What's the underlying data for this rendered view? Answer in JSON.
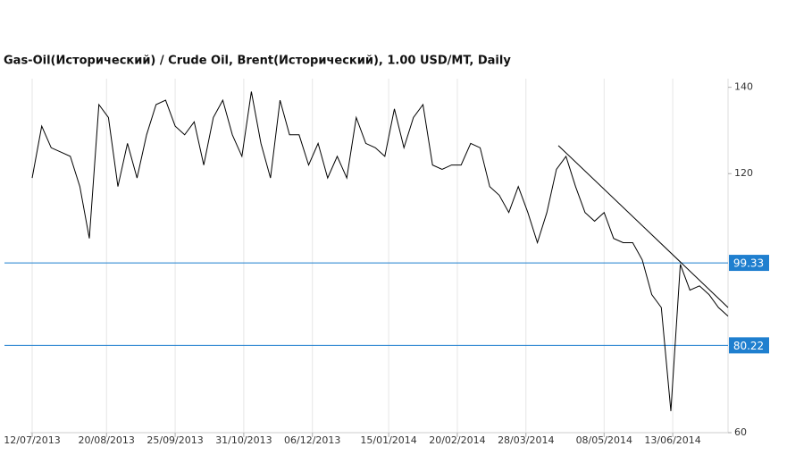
{
  "chart_data": {
    "type": "line",
    "title": "Gas-Oil(Исторический) / Crude Oil, Brent(Исторический), 1.00 USD/MT, Daily",
    "x": [
      "2013-07-12",
      "2013-07-17",
      "2013-07-22",
      "2013-07-27",
      "2013-08-01",
      "2013-08-06",
      "2013-08-11",
      "2013-08-16",
      "2013-08-21",
      "2013-08-26",
      "2013-08-31",
      "2013-09-05",
      "2013-09-10",
      "2013-09-15",
      "2013-09-20",
      "2013-09-25",
      "2013-09-30",
      "2013-10-05",
      "2013-10-10",
      "2013-10-15",
      "2013-10-20",
      "2013-10-25",
      "2013-10-30",
      "2013-11-04",
      "2013-11-09",
      "2013-11-14",
      "2013-11-19",
      "2013-11-24",
      "2013-11-29",
      "2013-12-04",
      "2013-12-09",
      "2013-12-14",
      "2013-12-19",
      "2013-12-24",
      "2013-12-29",
      "2014-01-03",
      "2014-01-08",
      "2014-01-13",
      "2014-01-18",
      "2014-01-23",
      "2014-01-28",
      "2014-02-02",
      "2014-02-07",
      "2014-02-12",
      "2014-02-17",
      "2014-02-22",
      "2014-02-27",
      "2014-03-04",
      "2014-03-09",
      "2014-03-14",
      "2014-03-19",
      "2014-03-24",
      "2014-03-29",
      "2014-04-03",
      "2014-04-08",
      "2014-04-13",
      "2014-04-18",
      "2014-04-23",
      "2014-04-28",
      "2014-05-03",
      "2014-05-08",
      "2014-05-13",
      "2014-05-18",
      "2014-05-23",
      "2014-05-28",
      "2014-06-02",
      "2014-06-07",
      "2014-06-12",
      "2014-06-17",
      "2014-06-22",
      "2014-06-27",
      "2014-07-02",
      "2014-07-07",
      "2014-07-12"
    ],
    "series": [
      {
        "color": "#000000",
        "values": [
          119,
          131,
          126,
          125,
          124,
          117,
          105,
          136,
          133,
          117,
          127,
          119,
          129,
          136,
          137,
          131,
          129,
          132,
          122,
          133,
          137,
          129,
          124,
          139,
          127,
          119,
          137,
          129,
          129,
          122,
          127,
          119,
          124,
          119,
          133,
          127,
          126,
          124,
          135,
          126,
          133,
          136,
          122,
          121,
          122,
          122,
          127,
          126,
          117,
          115,
          111,
          117,
          111,
          104,
          111,
          121,
          124,
          117,
          111,
          109,
          111,
          105,
          104,
          104,
          100,
          92,
          89,
          65,
          99,
          93,
          94,
          92,
          89,
          87
        ]
      }
    ],
    "trendline": {
      "x": [
        "2014-04-14",
        "2014-07-12"
      ],
      "values": [
        126.5,
        89
      ]
    },
    "levels": [
      99.33,
      80.22
    ],
    "level_color": "#1f7fcf",
    "xlim": [
      "2013-07-12",
      "2014-07-12"
    ],
    "xticks": [
      {
        "value": "2013-07-12",
        "label": "12/07/2013"
      },
      {
        "value": "2013-08-20",
        "label": "20/08/2013"
      },
      {
        "value": "2013-09-25",
        "label": "25/09/2013"
      },
      {
        "value": "2013-10-31",
        "label": "31/10/2013"
      },
      {
        "value": "2013-12-06",
        "label": "06/12/2013"
      },
      {
        "value": "2014-01-15",
        "label": "15/01/2014"
      },
      {
        "value": "2014-02-20",
        "label": "20/02/2014"
      },
      {
        "value": "2014-03-28",
        "label": "28/03/2014"
      },
      {
        "value": "2014-05-08",
        "label": "08/05/2014"
      },
      {
        "value": "2014-06-13",
        "label": "13/06/2014"
      }
    ],
    "ylim": [
      60,
      142
    ],
    "yticks": [
      60,
      120,
      140
    ],
    "grid": true
  }
}
